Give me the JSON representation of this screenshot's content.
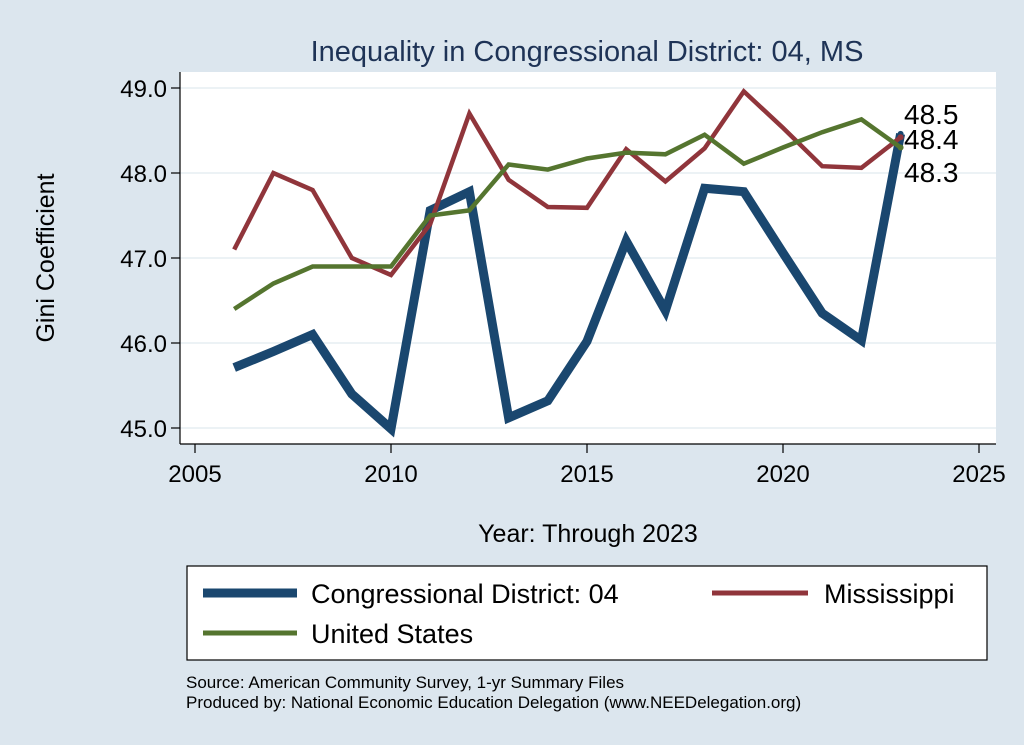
{
  "chart_data": {
    "type": "line",
    "title": "Inequality in Congressional District:  04, MS",
    "xlabel": "Year: Through 2023",
    "ylabel": "Gini Coefficient",
    "xlim": [
      2005,
      2025
    ],
    "ylim": [
      45.0,
      49.0
    ],
    "xticks": [
      2005,
      2010,
      2015,
      2020,
      2025
    ],
    "yticks": [
      45.0,
      46.0,
      47.0,
      48.0,
      49.0
    ],
    "ytick_labels": [
      "45.0",
      "46.0",
      "47.0",
      "48.0",
      "49.0"
    ],
    "x": [
      2006,
      2007,
      2008,
      2009,
      2010,
      2011,
      2012,
      2013,
      2014,
      2015,
      2016,
      2017,
      2018,
      2019,
      2020,
      2021,
      2022,
      2023
    ],
    "series": [
      {
        "name": "Congressional District:  04",
        "color": "#1a476f",
        "values": [
          45.71,
          45.9,
          46.1,
          45.4,
          44.99,
          47.56,
          47.78,
          45.12,
          45.32,
          46.02,
          47.2,
          46.38,
          47.82,
          47.78,
          47.06,
          46.35,
          46.03,
          48.46
        ]
      },
      {
        "name": "Mississippi",
        "color": "#90353b",
        "values": [
          47.1,
          48.0,
          47.8,
          47.0,
          46.8,
          47.4,
          48.7,
          47.92,
          47.6,
          47.59,
          48.28,
          47.9,
          48.29,
          48.96,
          48.53,
          48.08,
          48.06,
          48.42
        ]
      },
      {
        "name": "United States",
        "color": "#55752f",
        "values": [
          46.4,
          46.7,
          46.9,
          46.9,
          46.9,
          47.5,
          47.56,
          48.1,
          48.04,
          48.17,
          48.24,
          48.22,
          48.45,
          48.11,
          48.3,
          48.48,
          48.63,
          48.3
        ]
      }
    ],
    "end_labels": [
      "48.5",
      "48.4",
      "48.3"
    ],
    "legend": {
      "position": "bottom",
      "entries": [
        "Congressional District:  04",
        "Mississippi",
        "United States"
      ]
    }
  },
  "notes": {
    "source": "Source: American Community Survey, 1-yr Summary Files",
    "produced": "Produced by: National Economic Education Delegation (www.NEEDelegation.org)"
  }
}
